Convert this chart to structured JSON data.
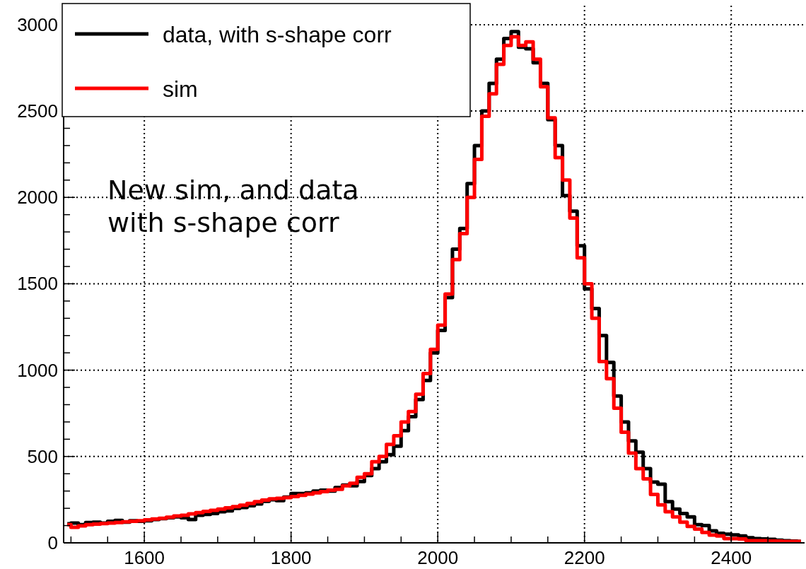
{
  "chart_data": {
    "type": "step",
    "annotations": [
      "New sim, and data\nwith s-shape corr"
    ],
    "xlim": [
      1490,
      2500
    ],
    "xticks": [
      {
        "value": 1500,
        "label": null
      },
      {
        "value": 1550,
        "label": null
      },
      1600,
      {
        "value": 1650,
        "label": null
      },
      {
        "value": 1700,
        "label": null
      },
      {
        "value": 1750,
        "label": null
      },
      1800,
      {
        "value": 1850,
        "label": null
      },
      {
        "value": 1900,
        "label": null
      },
      {
        "value": 1950,
        "label": null
      },
      2000,
      {
        "value": 2050,
        "label": null
      },
      {
        "value": 2100,
        "label": null
      },
      {
        "value": 2150,
        "label": null
      },
      2200,
      {
        "value": 2250,
        "label": null
      },
      {
        "value": 2300,
        "label": null
      },
      {
        "value": 2350,
        "label": null
      },
      2400,
      {
        "value": 2450,
        "label": null
      }
    ],
    "ylim": [
      0,
      3110
    ],
    "yticks": [
      0,
      {
        "value": 100,
        "label": null
      },
      {
        "value": 200,
        "label": null
      },
      {
        "value": 300,
        "label": null
      },
      {
        "value": 400,
        "label": null
      },
      500,
      {
        "value": 600,
        "label": null
      },
      {
        "value": 700,
        "label": null
      },
      {
        "value": 800,
        "label": null
      },
      {
        "value": 900,
        "label": null
      },
      1000,
      {
        "value": 1100,
        "label": null
      },
      {
        "value": 1200,
        "label": null
      },
      {
        "value": 1300,
        "label": null
      },
      {
        "value": 1400,
        "label": null
      },
      1500,
      {
        "value": 1600,
        "label": null
      },
      {
        "value": 1700,
        "label": null
      },
      {
        "value": 1800,
        "label": null
      },
      {
        "value": 1900,
        "label": null
      },
      2000,
      {
        "value": 2100,
        "label": null
      },
      {
        "value": 2200,
        "label": null
      },
      {
        "value": 2300,
        "label": null
      },
      {
        "value": 2400,
        "label": null
      },
      2500,
      {
        "value": 2600,
        "label": null
      },
      {
        "value": 2700,
        "label": null
      },
      {
        "value": 2800,
        "label": null
      },
      {
        "value": 2900,
        "label": null
      },
      3000
    ],
    "grid": true,
    "legend": "top left",
    "line_style": "solid",
    "marker": "none",
    "x": [
      1495,
      1505,
      1515,
      1525,
      1535,
      1545,
      1555,
      1565,
      1575,
      1585,
      1595,
      1605,
      1615,
      1625,
      1635,
      1645,
      1655,
      1665,
      1675,
      1685,
      1695,
      1705,
      1715,
      1725,
      1735,
      1745,
      1755,
      1765,
      1775,
      1785,
      1795,
      1805,
      1815,
      1825,
      1835,
      1845,
      1855,
      1865,
      1875,
      1885,
      1895,
      1905,
      1915,
      1925,
      1935,
      1945,
      1955,
      1965,
      1975,
      1985,
      1995,
      2005,
      2015,
      2025,
      2035,
      2045,
      2055,
      2065,
      2075,
      2085,
      2095,
      2105,
      2115,
      2125,
      2135,
      2145,
      2155,
      2165,
      2175,
      2185,
      2195,
      2205,
      2215,
      2225,
      2235,
      2245,
      2255,
      2265,
      2275,
      2285,
      2295,
      2305,
      2315,
      2325,
      2335,
      2345,
      2355,
      2365,
      2375,
      2385,
      2395,
      2405,
      2415,
      2425,
      2435,
      2445,
      2455,
      2465,
      2475,
      2485,
      2495
    ],
    "series": [
      {
        "name": "data, with s-shape corr",
        "color": "#000000",
        "values": [
          110,
          115,
          105,
          118,
          120,
          115,
          125,
          130,
          120,
          128,
          125,
          128,
          135,
          140,
          145,
          150,
          145,
          135,
          160,
          165,
          170,
          180,
          185,
          200,
          205,
          215,
          225,
          240,
          250,
          245,
          265,
          285,
          285,
          290,
          300,
          305,
          300,
          320,
          335,
          330,
          355,
          390,
          430,
          470,
          510,
          560,
          650,
          730,
          830,
          940,
          1100,
          1230,
          1420,
          1700,
          1820,
          2080,
          2300,
          2500,
          2660,
          2800,
          2920,
          2960,
          2870,
          2860,
          2780,
          2660,
          2450,
          2300,
          2010,
          1920,
          1720,
          1470,
          1357,
          1200,
          1045,
          850,
          700,
          590,
          525,
          430,
          352,
          340,
          238,
          195,
          170,
          150,
          105,
          100,
          70,
          55,
          50,
          46,
          40,
          30,
          25,
          22,
          20,
          15,
          12,
          10,
          8
        ]
      },
      {
        "name": "sim",
        "color": "#ff0000",
        "values": [
          105,
          90,
          98,
          105,
          108,
          112,
          115,
          118,
          122,
          125,
          128,
          133,
          138,
          142,
          148,
          155,
          160,
          168,
          175,
          182,
          188,
          195,
          203,
          210,
          218,
          228,
          238,
          248,
          255,
          258,
          262,
          268,
          275,
          282,
          290,
          297,
          305,
          310,
          330,
          345,
          380,
          400,
          470,
          500,
          570,
          620,
          700,
          760,
          860,
          980,
          1120,
          1260,
          1440,
          1640,
          1790,
          2000,
          2220,
          2470,
          2600,
          2770,
          2880,
          2930,
          2880,
          2900,
          2800,
          2640,
          2460,
          2230,
          2100,
          1880,
          1650,
          1500,
          1300,
          1050,
          950,
          780,
          640,
          520,
          430,
          370,
          280,
          220,
          180,
          150,
          120,
          95,
          80,
          60,
          45,
          40,
          25,
          25,
          22,
          12,
          12,
          12,
          10,
          10,
          8,
          8,
          8
        ]
      }
    ]
  }
}
